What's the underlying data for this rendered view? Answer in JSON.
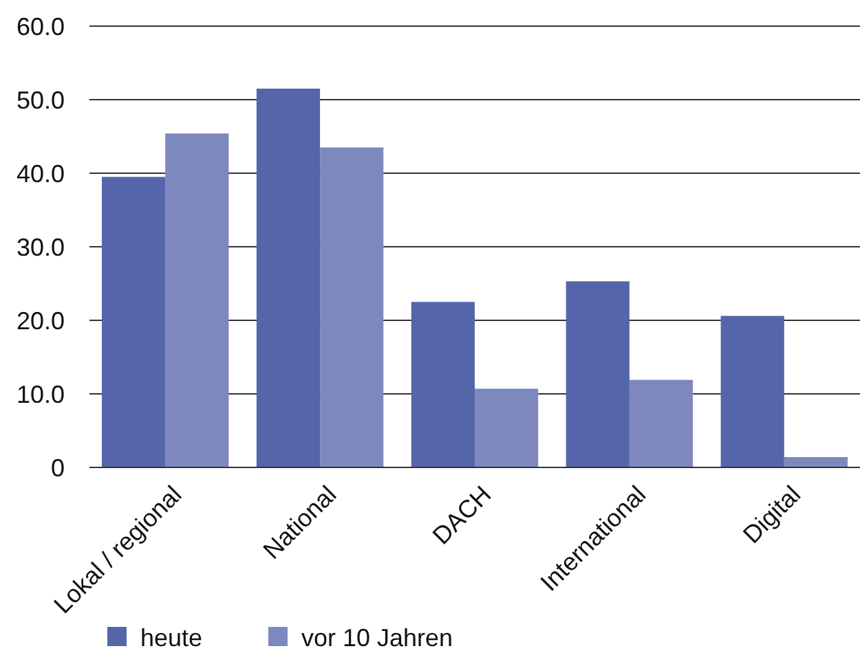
{
  "chart_data": {
    "type": "bar",
    "categories": [
      "Lokal / regional",
      "National",
      "DACH",
      "International",
      "Digital"
    ],
    "series": [
      {
        "name": "heute",
        "color": "#5465aa",
        "values": [
          39.5,
          51.5,
          22.5,
          25.3,
          20.6
        ]
      },
      {
        "name": "vor 10 Jahren",
        "color": "#7d88bf",
        "values": [
          45.4,
          43.5,
          10.7,
          11.9,
          1.4
        ]
      }
    ],
    "ylim": [
      0,
      60
    ],
    "yticks": [
      {
        "value": 0,
        "label": "0"
      },
      {
        "value": 10,
        "label": "10.0"
      },
      {
        "value": 20,
        "label": "20.0"
      },
      {
        "value": 30,
        "label": "30.0"
      },
      {
        "value": 40,
        "label": "40.0"
      },
      {
        "value": 50,
        "label": "50.0"
      },
      {
        "value": 60,
        "label": "60.0"
      }
    ],
    "grid": "y",
    "legend": "bottom left"
  }
}
